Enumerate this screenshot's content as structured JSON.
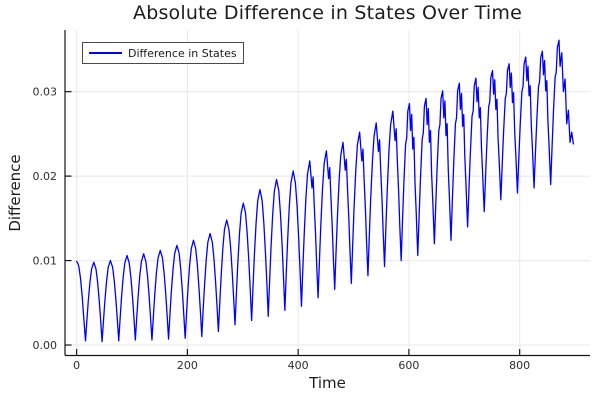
{
  "figure": {
    "title": "Absolute Difference in States Over Time"
  },
  "chart_data": {
    "type": "line",
    "title": "Absolute Difference in States Over Time",
    "xlabel": "Time",
    "ylabel": "Difference",
    "xlim": [
      -21,
      927
    ],
    "ylim": [
      -0.00124,
      0.0373
    ],
    "grid": true,
    "x_ticks": {
      "values": [
        0,
        200,
        400,
        600,
        800
      ],
      "labels": [
        "0",
        "200",
        "400",
        "600",
        "800"
      ]
    },
    "y_ticks": {
      "values": [
        0,
        0.01,
        0.02,
        0.03
      ],
      "labels": [
        "0.00",
        "0.01",
        "0.02",
        "0.03"
      ]
    },
    "legend": {
      "position": "top-left",
      "entries": [
        {
          "label": "Difference in States",
          "color": "#0000ff"
        }
      ]
    },
    "series": [
      {
        "name": "Difference in States",
        "color": "#0000ff",
        "width": 1.3,
        "x": [
          0,
          2,
          4,
          7,
          10,
          13,
          16,
          18.5,
          21,
          24,
          27,
          31,
          35,
          38,
          41,
          43.5,
          46,
          48.5,
          51,
          54,
          57,
          61,
          65,
          68,
          71,
          73.5,
          76,
          78.5,
          81,
          84,
          87,
          91,
          95,
          98,
          101,
          103.5,
          106,
          108.5,
          111,
          114,
          117,
          121,
          125,
          128,
          131,
          133.5,
          136,
          138.5,
          141,
          144,
          147,
          151,
          155,
          158,
          161,
          163.5,
          166,
          168.5,
          171,
          174,
          177,
          181,
          185,
          188,
          191,
          193.5,
          196,
          198.5,
          201,
          204,
          207,
          211,
          215,
          218,
          221,
          223.5,
          226,
          228.5,
          231,
          234,
          237,
          241,
          245,
          248,
          251,
          253.5,
          256,
          258.5,
          261,
          264,
          267,
          271,
          275,
          278,
          281,
          283.5,
          286,
          288.5,
          291,
          294,
          297,
          301,
          305,
          308,
          311,
          313.5,
          316,
          318.5,
          321,
          324,
          327,
          331,
          335,
          338,
          341,
          343.5,
          346,
          348.5,
          351,
          354,
          357,
          361,
          365,
          368,
          371,
          373.5,
          376,
          378.5,
          381,
          384,
          387,
          391,
          395,
          398,
          401,
          403.5,
          406,
          408.5,
          411,
          414,
          417,
          421,
          425,
          427,
          429,
          431.5,
          433.5,
          436,
          438.5,
          441,
          444,
          447,
          451,
          455,
          457,
          459,
          461.5,
          463.5,
          466,
          468.5,
          471,
          474,
          477,
          481,
          485,
          487,
          489,
          491.5,
          493.5,
          496,
          498.5,
          501,
          504,
          507,
          511,
          515,
          517,
          519,
          521.5,
          523.5,
          526,
          528.5,
          531,
          534,
          537,
          541,
          545,
          547,
          549,
          551.5,
          553.5,
          556,
          558.5,
          561,
          564,
          567,
          571,
          575,
          577,
          579,
          581.5,
          583.5,
          586,
          588.5,
          591,
          594,
          596,
          598,
          601,
          603,
          605,
          607,
          609,
          611,
          613,
          616,
          618.5,
          621,
          624,
          626,
          628,
          631,
          633,
          635,
          637,
          639,
          641,
          643,
          646,
          648.5,
          651,
          654,
          656,
          658,
          661,
          663,
          665,
          667,
          669,
          671,
          673,
          676,
          678.5,
          681,
          684,
          686,
          688,
          691,
          693,
          695,
          697,
          699,
          701,
          703,
          706,
          708.5,
          711,
          714,
          716,
          718,
          721,
          723,
          725,
          727,
          729,
          731,
          733,
          736,
          738.5,
          741,
          744,
          746,
          748,
          751,
          753,
          755,
          757,
          759,
          761,
          763,
          766,
          768.5,
          771,
          774,
          776,
          778,
          781,
          783,
          785,
          787,
          789,
          791,
          793,
          796,
          798.5,
          801,
          804,
          806,
          808,
          811,
          813,
          815,
          817,
          819,
          821,
          823,
          826,
          828.5,
          831,
          834,
          836,
          838,
          841,
          843,
          845,
          847,
          849,
          851,
          853,
          856,
          858.5,
          861,
          864,
          866,
          868,
          871,
          873,
          876,
          879,
          882,
          885,
          888,
          891,
          894,
          897
        ],
        "y": [
          0.0099,
          0.0097,
          0.0093,
          0.0079,
          0.0058,
          0.0031,
          0.0005,
          0.0029,
          0.0052,
          0.0074,
          0.009,
          0.0098,
          0.009,
          0.0074,
          0.0051,
          0.0028,
          0.0004,
          0.0029,
          0.0052,
          0.0075,
          0.0092,
          0.01,
          0.0092,
          0.0076,
          0.0053,
          0.003,
          0.0005,
          0.0031,
          0.0056,
          0.008,
          0.0097,
          0.0106,
          0.0097,
          0.008,
          0.0056,
          0.0032,
          0.0006,
          0.0032,
          0.0057,
          0.0082,
          0.0099,
          0.0108,
          0.0099,
          0.0082,
          0.0057,
          0.0032,
          0.0006,
          0.0033,
          0.0059,
          0.0085,
          0.0103,
          0.0112,
          0.0103,
          0.0085,
          0.006,
          0.0034,
          0.0007,
          0.0036,
          0.0063,
          0.0089,
          0.0108,
          0.0118,
          0.0109,
          0.009,
          0.0063,
          0.0036,
          0.0008,
          0.0038,
          0.0066,
          0.0094,
          0.0114,
          0.0124,
          0.0114,
          0.0095,
          0.0067,
          0.004,
          0.001,
          0.0042,
          0.0071,
          0.0101,
          0.0122,
          0.0132,
          0.0122,
          0.0102,
          0.0074,
          0.0046,
          0.0016,
          0.005,
          0.0082,
          0.0114,
          0.0137,
          0.0148,
          0.0137,
          0.0116,
          0.0086,
          0.0056,
          0.0024,
          0.0061,
          0.0096,
          0.0131,
          0.0156,
          0.0168,
          0.0156,
          0.0132,
          0.0099,
          0.0065,
          0.0029,
          0.0069,
          0.0107,
          0.0144,
          0.0171,
          0.0184,
          0.0171,
          0.0145,
          0.0109,
          0.0073,
          0.0034,
          0.0076,
          0.0115,
          0.0154,
          0.0182,
          0.0196,
          0.0183,
          0.0156,
          0.0119,
          0.0081,
          0.0041,
          0.0084,
          0.0124,
          0.0164,
          0.0192,
          0.0206,
          0.0192,
          0.0165,
          0.0126,
          0.0087,
          0.0046,
          0.0091,
          0.0132,
          0.0174,
          0.0203,
          0.0218,
          0.0186,
          0.0199,
          0.0166,
          0.0131,
          0.0095,
          0.0056,
          0.0101,
          0.0143,
          0.0185,
          0.0215,
          0.023,
          0.0197,
          0.021,
          0.0178,
          0.0141,
          0.0105,
          0.0066,
          0.0111,
          0.0153,
          0.0195,
          0.0225,
          0.024,
          0.0207,
          0.022,
          0.0187,
          0.015,
          0.0113,
          0.0073,
          0.0119,
          0.0163,
          0.0206,
          0.0237,
          0.0252,
          0.0218,
          0.0232,
          0.0198,
          0.016,
          0.0123,
          0.0082,
          0.0129,
          0.0173,
          0.0216,
          0.0247,
          0.0263,
          0.0229,
          0.0243,
          0.0209,
          0.0171,
          0.0134,
          0.0093,
          0.0141,
          0.0185,
          0.023,
          0.0261,
          0.0277,
          0.0242,
          0.0256,
          0.022,
          0.0181,
          0.0142,
          0.01,
          0.0148,
          0.0193,
          0.0238,
          0.0245,
          0.0277,
          0.0286,
          0.0254,
          0.0273,
          0.0232,
          0.0246,
          0.0192,
          0.016,
          0.0106,
          0.0154,
          0.0199,
          0.0244,
          0.0251,
          0.0283,
          0.0292,
          0.0261,
          0.028,
          0.024,
          0.0254,
          0.0203,
          0.0172,
          0.012,
          0.0167,
          0.0211,
          0.0254,
          0.0261,
          0.0292,
          0.0301,
          0.0269,
          0.0289,
          0.0248,
          0.0262,
          0.0209,
          0.0177,
          0.0124,
          0.0172,
          0.0217,
          0.0262,
          0.0269,
          0.0301,
          0.031,
          0.0279,
          0.0298,
          0.0259,
          0.0273,
          0.0222,
          0.0191,
          0.014,
          0.0186,
          0.0228,
          0.0271,
          0.0277,
          0.0307,
          0.0316,
          0.0288,
          0.0305,
          0.0269,
          0.0281,
          0.0234,
          0.0205,
          0.0158,
          0.0201,
          0.0242,
          0.0282,
          0.0288,
          0.0317,
          0.0325,
          0.0297,
          0.0314,
          0.0279,
          0.0291,
          0.0245,
          0.0218,
          0.0172,
          0.0214,
          0.0253,
          0.0292,
          0.0298,
          0.0325,
          0.0333,
          0.0305,
          0.0322,
          0.0287,
          0.0299,
          0.0253,
          0.0226,
          0.018,
          0.0222,
          0.0261,
          0.03,
          0.0306,
          0.0333,
          0.0341,
          0.0313,
          0.033,
          0.0295,
          0.0307,
          0.026,
          0.0233,
          0.0186,
          0.0228,
          0.0267,
          0.0306,
          0.0312,
          0.034,
          0.0348,
          0.032,
          0.0337,
          0.0301,
          0.0313,
          0.0266,
          0.0237,
          0.019,
          0.0234,
          0.0276,
          0.0317,
          0.0323,
          0.0352,
          0.0361,
          0.033,
          0.0346,
          0.03,
          0.0315,
          0.0262,
          0.0278,
          0.024,
          0.0252,
          0.0238
        ]
      }
    ],
    "style": {
      "line_color": "#0000ff",
      "grid_color": "#e8e8e8",
      "spine_color": "#151515",
      "tick_label_color": "#2e2e2e",
      "plot_background": "#ffffff"
    }
  }
}
